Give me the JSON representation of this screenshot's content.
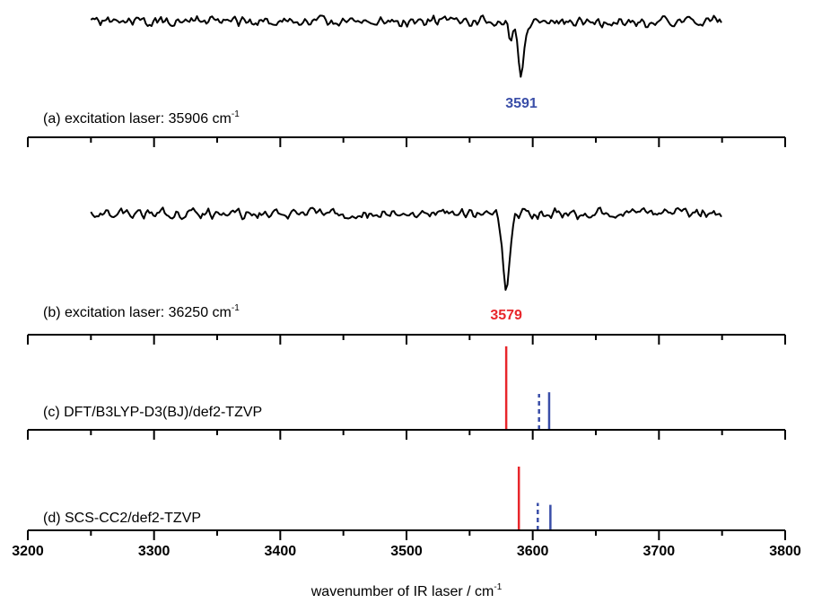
{
  "chart_data": {
    "type": "line",
    "xlabel": "wavenumber of IR laser / cm",
    "xlabel_superscript": "-1",
    "xlim": [
      3200,
      3800
    ],
    "major_ticks": [
      3200,
      3300,
      3400,
      3500,
      3600,
      3700,
      3800
    ],
    "tick_labels": [
      "3200",
      "3300",
      "3400",
      "3500",
      "3600",
      "3700",
      "3800"
    ],
    "minor_tick_step": 50,
    "tick_label_panel": "d",
    "colors": {
      "trace": "#000000",
      "red": "#e8262b",
      "blue": "#3a4ea8",
      "axis": "#000000"
    },
    "panels": [
      {
        "id": "a",
        "kind": "spectrum",
        "label": "(a)  excitation laser: 35906 cm",
        "label_superscript": "-1",
        "x_range": [
          3250,
          3750
        ],
        "noise_seed": 11,
        "dip": {
          "x": 3591,
          "depth": 1.0,
          "width": 3.0,
          "shoulder_x": 3583,
          "shoulder_depth": 0.35
        },
        "annotation": {
          "text": "3591",
          "color": "blue",
          "x": 3591
        }
      },
      {
        "id": "b",
        "kind": "spectrum",
        "label": "(b)  excitation laser: 36250 cm",
        "label_superscript": "-1",
        "x_range": [
          3250,
          3750
        ],
        "noise_seed": 29,
        "dip": {
          "x": 3579,
          "depth": 1.0,
          "width": 4.0
        },
        "annotation": {
          "text": "3579",
          "color": "red",
          "x": 3579
        }
      },
      {
        "id": "c",
        "kind": "sticks",
        "label": "(c)  DFT/B3LYP-D3(BJ)/def2-TZVP",
        "sticks": [
          {
            "x": 3579,
            "height": 1.0,
            "color": "red",
            "style": "solid"
          },
          {
            "x": 3605,
            "height": 0.43,
            "color": "blue",
            "style": "dashed"
          },
          {
            "x": 3613,
            "height": 0.45,
            "color": "blue",
            "style": "solid"
          }
        ]
      },
      {
        "id": "d",
        "kind": "sticks",
        "label": "(d)  SCS-CC2/def2-TZVP",
        "sticks": [
          {
            "x": 3589,
            "height": 1.0,
            "color": "red",
            "style": "solid"
          },
          {
            "x": 3604,
            "height": 0.43,
            "color": "blue",
            "style": "dashed"
          },
          {
            "x": 3614,
            "height": 0.4,
            "color": "blue",
            "style": "solid"
          }
        ]
      }
    ]
  }
}
